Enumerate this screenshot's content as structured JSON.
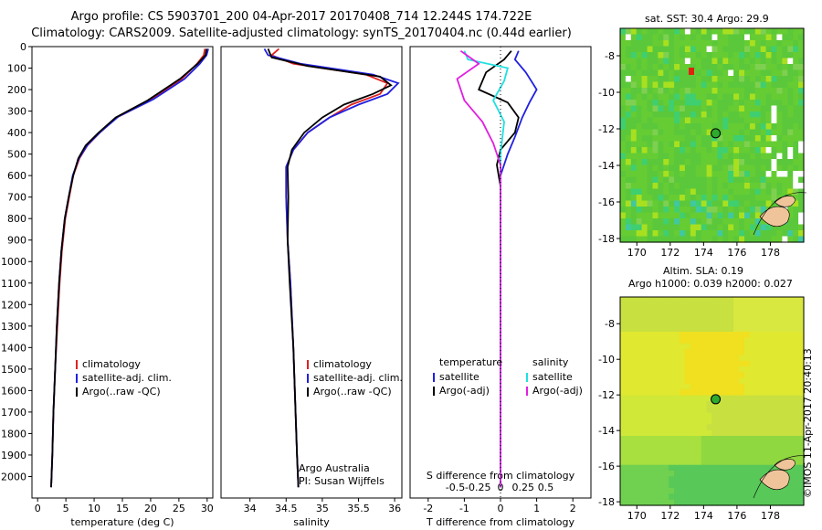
{
  "header": {
    "line1": "Argo profile: CS 5903701_200 04-Apr-2017 20170408_714 12.244S 174.722E",
    "line2": "Climatology: CARS2009. Satellite-adjusted climatology: synTS_20170404.nc (0.44d earlier)"
  },
  "map_top": {
    "title": "sat. SST: 30.4  Argo: 29.9"
  },
  "map_bottom": {
    "title_line1": "Altim. SLA: 0.19",
    "title_line2": "Argo h1000: 0.039 h2000: 0.027"
  },
  "credit": "©IMOS 11-Apr-2017 20:40:13",
  "colors": {
    "climatology": "#e02020",
    "satellite": "#2020e0",
    "argo": "#000000",
    "s_satellite": "#20e0e0",
    "s_argo": "#e020e0"
  },
  "chart_data": [
    {
      "type": "line",
      "xlabel": "temperature (deg C)",
      "ylabel": "",
      "xlim": [
        -1,
        31
      ],
      "ylim": [
        2100,
        0
      ],
      "x_ticks": [
        0,
        5,
        10,
        15,
        20,
        25,
        30
      ],
      "y_ticks": [
        0,
        100,
        200,
        300,
        400,
        500,
        600,
        700,
        800,
        900,
        1000,
        1100,
        1200,
        1300,
        1400,
        1500,
        1600,
        1700,
        1800,
        1900,
        2000
      ],
      "legend": {
        "placement": "center-left",
        "labels": [
          "climatology",
          "satellite-adj. clim.",
          "Argo(..raw -QC)"
        ]
      },
      "series": [
        {
          "name": "climatology",
          "color": "#e02020",
          "points": [
            [
              29.6,
              10
            ],
            [
              29.4,
              40
            ],
            [
              28.2,
              80
            ],
            [
              25.5,
              150
            ],
            [
              20,
              250
            ],
            [
              14,
              330
            ],
            [
              11,
              400
            ],
            [
              8.8,
              460
            ],
            [
              7.4,
              520
            ],
            [
              6.3,
              600
            ],
            [
              5.6,
              700
            ],
            [
              4.9,
              800
            ],
            [
              4.3,
              950
            ],
            [
              3.9,
              1100
            ],
            [
              3.5,
              1300
            ],
            [
              3.1,
              1500
            ],
            [
              2.8,
              1700
            ],
            [
              2.6,
              1900
            ],
            [
              2.4,
              2050
            ]
          ]
        },
        {
          "name": "satellite-adj. clim.",
          "color": "#2020e0",
          "points": [
            [
              30.2,
              10
            ],
            [
              29.9,
              40
            ],
            [
              28.7,
              80
            ],
            [
              26,
              150
            ],
            [
              20.5,
              245
            ],
            [
              14.3,
              325
            ],
            [
              11.2,
              395
            ],
            [
              8.9,
              455
            ],
            [
              7.3,
              520
            ],
            [
              6.2,
              600
            ],
            [
              5.5,
              700
            ],
            [
              4.8,
              800
            ],
            [
              4.2,
              950
            ],
            [
              3.8,
              1100
            ],
            [
              3.4,
              1300
            ],
            [
              3.1,
              1500
            ],
            [
              2.8,
              1700
            ],
            [
              2.6,
              1900
            ],
            [
              2.4,
              2050
            ]
          ]
        },
        {
          "name": "Argo(..raw -QC)",
          "color": "#000000",
          "points": [
            [
              29.9,
              10
            ],
            [
              29.7,
              40
            ],
            [
              28.3,
              80
            ],
            [
              25.2,
              150
            ],
            [
              19.5,
              250
            ],
            [
              13.8,
              330
            ],
            [
              10.8,
              400
            ],
            [
              8.5,
              460
            ],
            [
              7.2,
              520
            ],
            [
              6.3,
              600
            ],
            [
              5.5,
              700
            ],
            [
              4.8,
              800
            ],
            [
              4.2,
              950
            ],
            [
              3.8,
              1100
            ],
            [
              3.4,
              1300
            ],
            [
              3.1,
              1500
            ],
            [
              2.8,
              1700
            ],
            [
              2.6,
              1900
            ],
            [
              2.4,
              2050
            ]
          ]
        }
      ]
    },
    {
      "type": "line",
      "xlabel": "salinity",
      "xlim": [
        33.6,
        36.1
      ],
      "ylim": [
        2100,
        0
      ],
      "x_ticks": [
        34,
        34.5,
        35,
        35.5,
        36
      ],
      "legend": {
        "placement": "center-right",
        "labels": [
          "climatology",
          "satellite-adj. clim.",
          "Argo(..raw -QC)"
        ]
      },
      "annotations": [
        "Argo Australia",
        "PI: Susan Wijffels"
      ],
      "series": [
        {
          "name": "climatology",
          "color": "#e02020",
          "points": [
            [
              34.4,
              10
            ],
            [
              34.3,
              40
            ],
            [
              34.6,
              80
            ],
            [
              35.6,
              130
            ],
            [
              35.9,
              170
            ],
            [
              35.8,
              220
            ],
            [
              35.4,
              270
            ],
            [
              35.1,
              330
            ],
            [
              34.8,
              400
            ],
            [
              34.6,
              480
            ],
            [
              34.5,
              560
            ],
            [
              34.5,
              700
            ],
            [
              34.52,
              900
            ],
            [
              34.56,
              1100
            ],
            [
              34.6,
              1400
            ],
            [
              34.63,
              1700
            ],
            [
              34.65,
              1900
            ],
            [
              34.67,
              2050
            ]
          ]
        },
        {
          "name": "satellite-adj. clim.",
          "color": "#2020e0",
          "points": [
            [
              34.2,
              10
            ],
            [
              34.25,
              40
            ],
            [
              34.7,
              80
            ],
            [
              35.7,
              130
            ],
            [
              36.05,
              170
            ],
            [
              35.9,
              220
            ],
            [
              35.5,
              270
            ],
            [
              35.1,
              330
            ],
            [
              34.8,
              400
            ],
            [
              34.6,
              480
            ],
            [
              34.5,
              560
            ],
            [
              34.5,
              700
            ],
            [
              34.52,
              900
            ],
            [
              34.56,
              1100
            ],
            [
              34.6,
              1400
            ],
            [
              34.63,
              1700
            ],
            [
              34.65,
              1900
            ],
            [
              34.67,
              2050
            ]
          ]
        },
        {
          "name": "Argo(..raw -QC)",
          "color": "#000000",
          "points": [
            [
              34.25,
              10
            ],
            [
              34.3,
              50
            ],
            [
              34.8,
              90
            ],
            [
              35.8,
              140
            ],
            [
              35.95,
              180
            ],
            [
              35.7,
              220
            ],
            [
              35.3,
              270
            ],
            [
              35.0,
              330
            ],
            [
              34.75,
              400
            ],
            [
              34.58,
              480
            ],
            [
              34.52,
              560
            ],
            [
              34.53,
              700
            ],
            [
              34.52,
              900
            ],
            [
              34.55,
              1100
            ],
            [
              34.6,
              1400
            ],
            [
              34.63,
              1700
            ],
            [
              34.65,
              1900
            ],
            [
              34.67,
              2050
            ]
          ]
        }
      ]
    },
    {
      "type": "line",
      "xlabel": "T difference from climatology",
      "top_axis_label": "S difference from climatology",
      "xlim": [
        -2.5,
        2.5
      ],
      "ylim": [
        2100,
        0
      ],
      "x_ticks": [
        -2,
        -1,
        0,
        1,
        2
      ],
      "top_ticks": [
        -0.5,
        -0.25,
        0,
        0.25,
        0.5
      ],
      "legend": {
        "placement": "top",
        "labels": [
          "temperature",
          "satellite",
          "Argo(-adj)",
          "salinity",
          "satellite",
          "Argo(-adj)"
        ]
      },
      "series": [
        {
          "name": "satellite",
          "color": "#2020e0",
          "points": [
            [
              0.5,
              20
            ],
            [
              0.4,
              60
            ],
            [
              0.7,
              120
            ],
            [
              1.0,
              200
            ],
            [
              0.8,
              260
            ],
            [
              0.6,
              330
            ],
            [
              0.4,
              420
            ],
            [
              0.2,
              500
            ],
            [
              0,
              600
            ],
            [
              0,
              2050
            ]
          ]
        },
        {
          "name": "Argo(-adj)",
          "color": "#000000",
          "points": [
            [
              0.3,
              20
            ],
            [
              0.1,
              60
            ],
            [
              -0.4,
              120
            ],
            [
              -0.6,
              200
            ],
            [
              0.2,
              260
            ],
            [
              0.5,
              330
            ],
            [
              0.4,
              400
            ],
            [
              0,
              480
            ],
            [
              -0.1,
              550
            ],
            [
              0,
              650
            ],
            [
              0,
              2050
            ]
          ]
        },
        {
          "name": "satellite",
          "color": "#20e0e0",
          "points": [
            [
              -1,
              20
            ],
            [
              -0.9,
              60
            ],
            [
              0.2,
              100
            ],
            [
              0.1,
              160
            ],
            [
              -0.2,
              250
            ],
            [
              0.1,
              350
            ],
            [
              0,
              500
            ],
            [
              0,
              2050
            ]
          ]
        },
        {
          "name": "Argo(-adj)",
          "color": "#e020e0",
          "points": [
            [
              -1.1,
              20
            ],
            [
              -0.6,
              80
            ],
            [
              -1.2,
              150
            ],
            [
              -1.0,
              250
            ],
            [
              -0.5,
              350
            ],
            [
              -0.2,
              450
            ],
            [
              0,
              550
            ],
            [
              0,
              2050
            ]
          ]
        }
      ]
    },
    {
      "type": "heatmap",
      "xlim": [
        169,
        180
      ],
      "ylim": [
        -18.2,
        -6.5
      ],
      "x_ticks": [
        170,
        172,
        174,
        176,
        178
      ],
      "y_ticks": [
        -8,
        -10,
        -12,
        -14,
        -16,
        -18
      ],
      "marker": {
        "x": 174.722,
        "y": -12.244
      }
    },
    {
      "type": "heatmap",
      "xlim": [
        169,
        180
      ],
      "ylim": [
        -18.2,
        -6.5
      ],
      "x_ticks": [
        170,
        172,
        174,
        176,
        178
      ],
      "y_ticks": [
        -8,
        -10,
        -12,
        -14,
        -16,
        -18
      ],
      "marker": {
        "x": 174.722,
        "y": -12.244
      }
    }
  ]
}
